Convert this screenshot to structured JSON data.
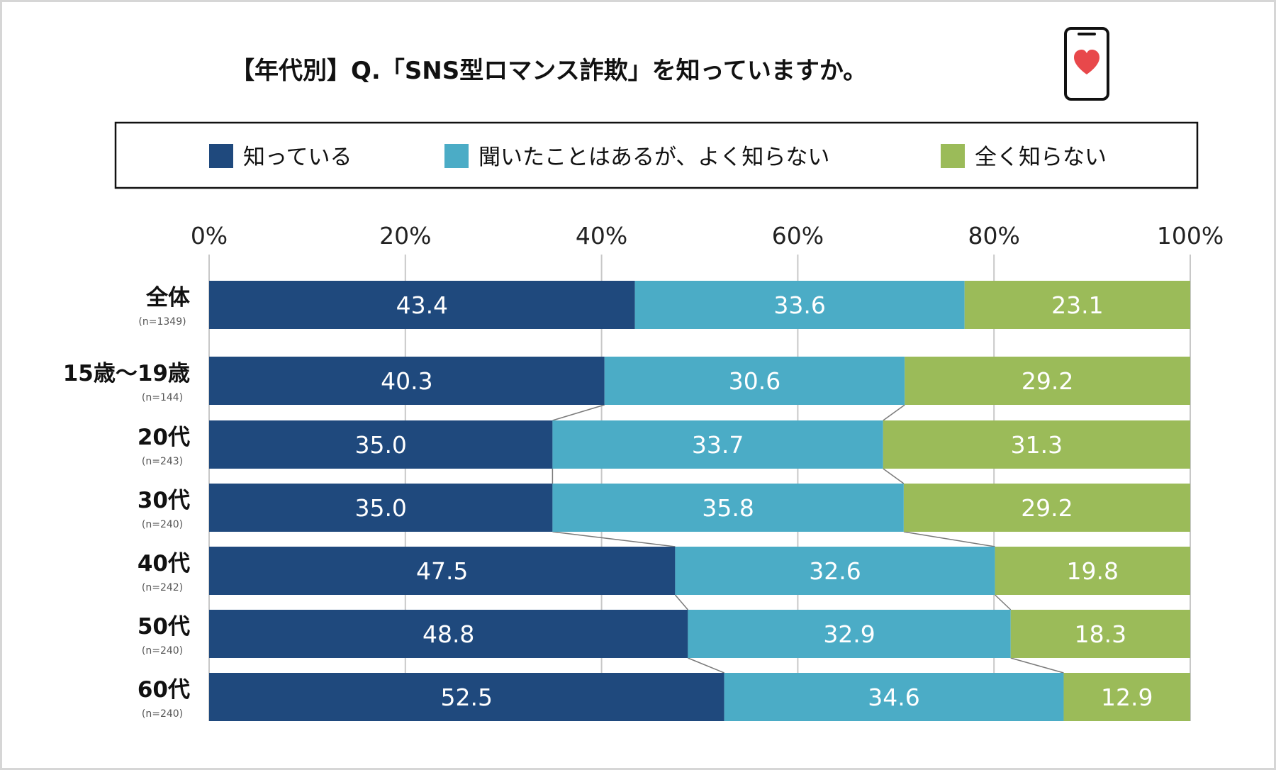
{
  "chart_data": {
    "type": "bar",
    "orientation": "horizontal",
    "stacked": true,
    "title": "【年代別】Q.「SNS型ロマンス詐欺」を知っていますか。",
    "xlabel": "",
    "ylabel": "",
    "xlim": [
      0,
      100
    ],
    "x_ticks": [
      "0%",
      "20%",
      "40%",
      "60%",
      "80%",
      "100%"
    ],
    "grid": true,
    "legend_position": "top",
    "categories": [
      "全体",
      "15歳～19歳",
      "20代",
      "30代",
      "40代",
      "50代",
      "60代"
    ],
    "sample_sizes": [
      "(n=1349)",
      "(n=144)",
      "(n=243)",
      "(n=240)",
      "(n=242)",
      "(n=240)",
      "(n=240)"
    ],
    "series": [
      {
        "name": "知っている",
        "color": "#1f497d",
        "values": [
          43.4,
          40.3,
          35.0,
          35.0,
          47.5,
          48.8,
          52.5
        ],
        "labels": [
          "43.4",
          "40.3",
          "35.0",
          "35.0",
          "47.5",
          "48.8",
          "52.5"
        ]
      },
      {
        "name": "聞いたことはあるが、よく知らない",
        "color": "#4bacc6",
        "values": [
          33.6,
          30.6,
          33.7,
          35.8,
          32.6,
          32.9,
          34.6
        ],
        "labels": [
          "33.6",
          "30.6",
          "33.7",
          "35.8",
          "32.6",
          "32.9",
          "34.6"
        ]
      },
      {
        "name": "全く知らない",
        "color": "#9bbb59",
        "values": [
          23.1,
          29.2,
          31.3,
          29.2,
          19.8,
          18.3,
          12.9
        ],
        "labels": [
          "23.1",
          "29.2",
          "31.3",
          "29.2",
          "19.8",
          "18.3",
          "12.9"
        ]
      }
    ],
    "connector_lines": true
  },
  "icons": {
    "title_icon": "smartphone-heart-icon"
  },
  "colors": {
    "icon_outline": "#111111",
    "heart": "#e8484b"
  }
}
